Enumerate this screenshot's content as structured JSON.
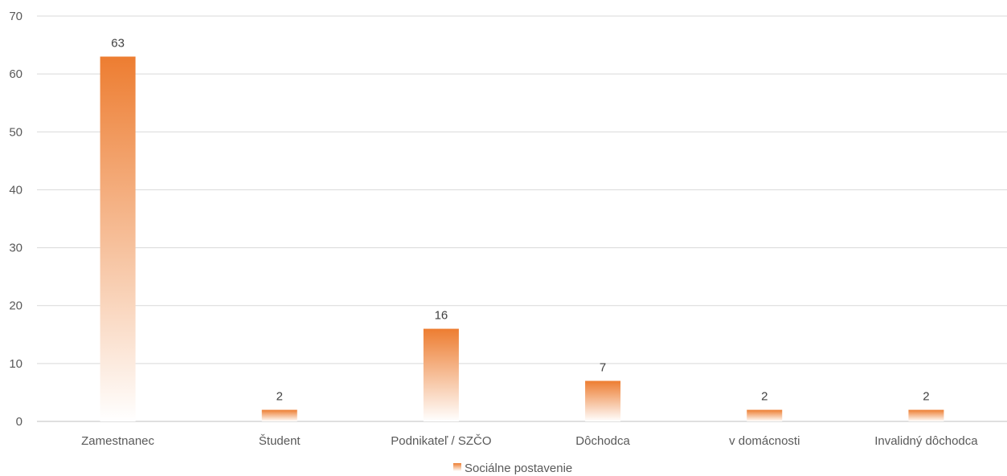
{
  "chart_data": {
    "type": "bar",
    "categories": [
      "Zamestnanec",
      "Študent",
      "Podnikateľ / SZČO",
      "Dôchodca",
      "v domácnosti",
      "Invalidný dôchodca"
    ],
    "series": [
      {
        "name": "Sociálne postavenie",
        "values": [
          63,
          2,
          16,
          7,
          2,
          2
        ]
      }
    ],
    "ylim": [
      0,
      70
    ],
    "yticks": [
      0,
      10,
      20,
      30,
      40,
      50,
      60,
      70
    ],
    "grid": true,
    "data_labels": true,
    "legend": "bottom-center",
    "colors": {
      "bar_top": "#ED7D31",
      "bar_bottom": "#FFFFFF",
      "grid": "#D9D9D9",
      "axis": "#BFBFBF"
    }
  }
}
